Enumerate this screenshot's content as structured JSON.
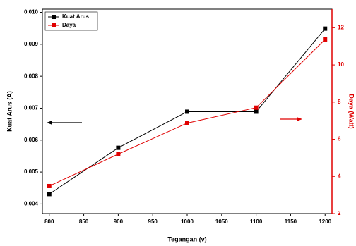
{
  "chart_data": {
    "type": "line",
    "x_label": "Tegangan (v)",
    "y_label": "Kuat Arus (A)",
    "y2_label": "Daya (Watt)",
    "x": [
      800,
      900,
      1000,
      1100,
      1200
    ],
    "series": [
      {
        "name": "Kuat Arus",
        "color": "#000000",
        "values": [
          0.00431,
          0.00576,
          0.00689,
          0.00689,
          0.00949
        ]
      },
      {
        "name": "Daya",
        "color": "#e00000",
        "axis": "y2",
        "values": [
          3.48,
          5.2,
          6.87,
          7.7,
          11.37
        ]
      }
    ],
    "xlim": [
      790,
      1210
    ],
    "xticks": [
      800,
      850,
      900,
      950,
      1000,
      1050,
      1100,
      1150,
      1200
    ],
    "ylim": [
      0.0037,
      0.0101
    ],
    "yticks": [
      {
        "value": 0.004,
        "label": "0,004"
      },
      {
        "value": 0.005,
        "label": "0,005"
      },
      {
        "value": 0.006,
        "label": "0,006"
      },
      {
        "value": 0.007,
        "label": "0,007"
      },
      {
        "value": 0.008,
        "label": "0,008"
      },
      {
        "value": 0.009,
        "label": "0,009"
      },
      {
        "value": 0.01,
        "label": "0,010"
      }
    ],
    "y2lim": [
      2,
      13
    ],
    "y2ticks": [
      2,
      4,
      6,
      8,
      10,
      12
    ],
    "legend": "top-left"
  }
}
